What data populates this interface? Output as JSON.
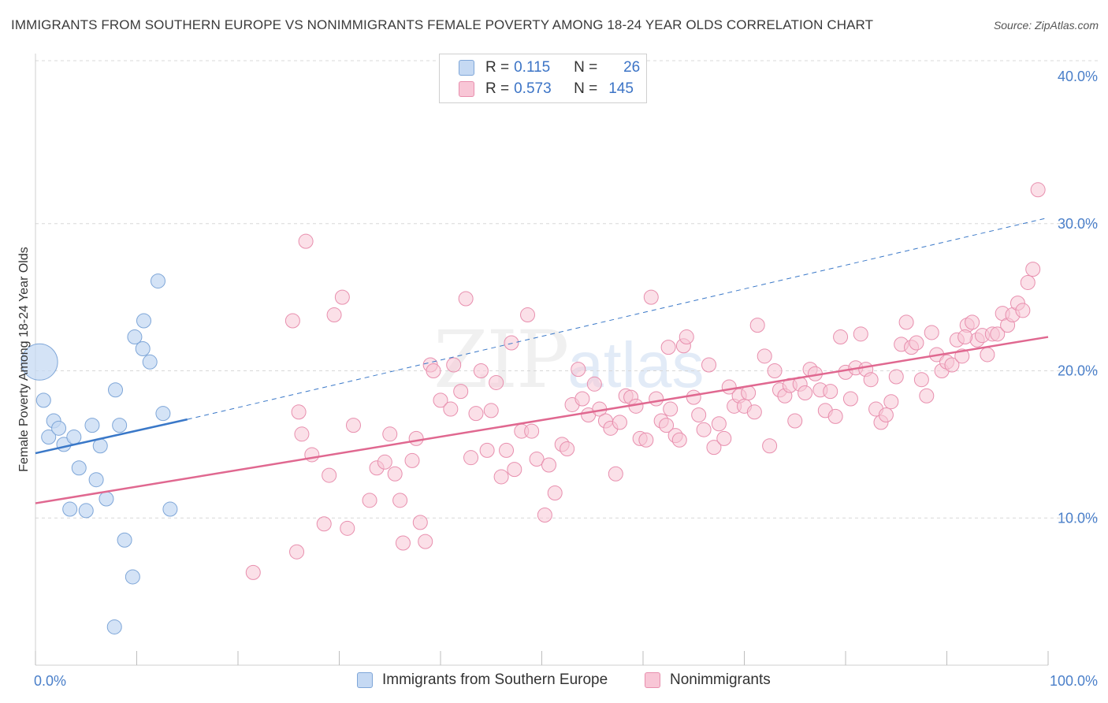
{
  "title": "IMMIGRANTS FROM SOUTHERN EUROPE VS NONIMMIGRANTS FEMALE POVERTY AMONG 18-24 YEAR OLDS CORRELATION CHART",
  "source": "Source: ZipAtlas.com",
  "watermark": {
    "zip": "ZIP",
    "atlas": "atlas"
  },
  "legend": {
    "rows": [
      {
        "r_label": "R =",
        "r_value": "0.115",
        "n_label": "N =",
        "n_value": "26"
      },
      {
        "r_label": "R =",
        "r_value": "0.573",
        "n_label": "N =",
        "n_value": "145"
      }
    ]
  },
  "bottom_legend": {
    "series1": "Immigrants from Southern Europe",
    "series2": "Nonimmigrants"
  },
  "chart_data": {
    "type": "scatter",
    "title": "IMMIGRANTS FROM SOUTHERN EUROPE VS NONIMMIGRANTS FEMALE POVERTY AMONG 18-24 YEAR OLDS CORRELATION CHART",
    "xlabel": "",
    "ylabel": "Female Poverty Among 18-24 Year Olds",
    "xlim": [
      0,
      100
    ],
    "ylim": [
      0,
      40
    ],
    "x_tick_labels": [
      {
        "value": 0,
        "label": "0.0%"
      },
      {
        "value": 100,
        "label": "100.0%"
      }
    ],
    "y_tick_labels": [
      {
        "value": 10,
        "label": "10.0%"
      },
      {
        "value": 20,
        "label": "20.0%"
      },
      {
        "value": 30,
        "label": "30.0%"
      },
      {
        "value": 40,
        "label": "40.0%"
      }
    ],
    "colors": {
      "series1_fill": "#c5d9f3",
      "series1_stroke": "#7ea6d8",
      "series1_line": "#3a78c8",
      "series2_fill": "#f8c6d6",
      "series2_stroke": "#e88fae",
      "series2_line": "#e06890",
      "tick_label": "#4a7fc9",
      "grid": "#d8d8d8"
    },
    "series": [
      {
        "name": "Immigrants from Southern Europe",
        "R": 0.115,
        "N": 26,
        "trend": {
          "x0": 0,
          "y0": 14.4,
          "x1": 15,
          "y1": 16.7,
          "x_dash_end": 100,
          "y_dash_end": 30.4
        },
        "points": [
          {
            "x": 0.4,
            "y": 20.6,
            "big": true
          },
          {
            "x": 0.8,
            "y": 18.0
          },
          {
            "x": 1.3,
            "y": 15.5
          },
          {
            "x": 1.8,
            "y": 16.6
          },
          {
            "x": 2.3,
            "y": 16.1
          },
          {
            "x": 2.8,
            "y": 15.0
          },
          {
            "x": 3.4,
            "y": 10.6
          },
          {
            "x": 3.8,
            "y": 15.5
          },
          {
            "x": 4.3,
            "y": 13.4
          },
          {
            "x": 5.0,
            "y": 10.5
          },
          {
            "x": 5.6,
            "y": 16.3
          },
          {
            "x": 6.0,
            "y": 12.6
          },
          {
            "x": 6.4,
            "y": 14.9
          },
          {
            "x": 7.0,
            "y": 11.3
          },
          {
            "x": 7.8,
            "y": 2.6
          },
          {
            "x": 7.9,
            "y": 18.7
          },
          {
            "x": 8.3,
            "y": 16.3
          },
          {
            "x": 8.8,
            "y": 8.5
          },
          {
            "x": 9.6,
            "y": 6.0
          },
          {
            "x": 9.8,
            "y": 22.3
          },
          {
            "x": 10.6,
            "y": 21.5
          },
          {
            "x": 10.7,
            "y": 23.4
          },
          {
            "x": 11.3,
            "y": 20.6
          },
          {
            "x": 12.1,
            "y": 26.1
          },
          {
            "x": 12.6,
            "y": 17.1
          },
          {
            "x": 13.3,
            "y": 10.6
          }
        ]
      },
      {
        "name": "Nonimmigrants",
        "R": 0.573,
        "N": 145,
        "trend": {
          "x0": 0,
          "y0": 11.0,
          "x1": 100,
          "y1": 22.3
        },
        "points": [
          {
            "x": 21.5,
            "y": 6.3
          },
          {
            "x": 25.4,
            "y": 23.4
          },
          {
            "x": 25.8,
            "y": 7.7
          },
          {
            "x": 26.0,
            "y": 17.2
          },
          {
            "x": 26.3,
            "y": 15.7
          },
          {
            "x": 26.7,
            "y": 28.8
          },
          {
            "x": 27.3,
            "y": 14.3
          },
          {
            "x": 28.5,
            "y": 9.6
          },
          {
            "x": 29.0,
            "y": 12.9
          },
          {
            "x": 29.5,
            "y": 23.8
          },
          {
            "x": 30.3,
            "y": 25.0
          },
          {
            "x": 30.8,
            "y": 9.3
          },
          {
            "x": 31.4,
            "y": 16.3
          },
          {
            "x": 33.0,
            "y": 11.2
          },
          {
            "x": 33.7,
            "y": 13.4
          },
          {
            "x": 34.5,
            "y": 13.8
          },
          {
            "x": 35.0,
            "y": 15.7
          },
          {
            "x": 35.5,
            "y": 13.0
          },
          {
            "x": 36.0,
            "y": 11.2
          },
          {
            "x": 36.3,
            "y": 8.3
          },
          {
            "x": 37.2,
            "y": 13.9
          },
          {
            "x": 37.6,
            "y": 15.4
          },
          {
            "x": 38.0,
            "y": 9.7
          },
          {
            "x": 38.5,
            "y": 8.4
          },
          {
            "x": 39.0,
            "y": 20.4
          },
          {
            "x": 39.3,
            "y": 20.0
          },
          {
            "x": 40.0,
            "y": 18.0
          },
          {
            "x": 41.0,
            "y": 17.4
          },
          {
            "x": 41.3,
            "y": 20.4
          },
          {
            "x": 42.0,
            "y": 18.6
          },
          {
            "x": 42.5,
            "y": 24.9
          },
          {
            "x": 43.0,
            "y": 14.1
          },
          {
            "x": 43.5,
            "y": 17.1
          },
          {
            "x": 44.0,
            "y": 20.0
          },
          {
            "x": 44.6,
            "y": 14.6
          },
          {
            "x": 45.0,
            "y": 17.3
          },
          {
            "x": 45.5,
            "y": 19.2
          },
          {
            "x": 46.0,
            "y": 12.8
          },
          {
            "x": 46.5,
            "y": 14.6
          },
          {
            "x": 47.0,
            "y": 21.9
          },
          {
            "x": 47.3,
            "y": 13.3
          },
          {
            "x": 48.0,
            "y": 15.9
          },
          {
            "x": 48.6,
            "y": 23.8
          },
          {
            "x": 49.0,
            "y": 15.9
          },
          {
            "x": 49.5,
            "y": 14.0
          },
          {
            "x": 50.3,
            "y": 10.2
          },
          {
            "x": 50.7,
            "y": 13.6
          },
          {
            "x": 51.3,
            "y": 11.7
          },
          {
            "x": 52.0,
            "y": 15.0
          },
          {
            "x": 52.5,
            "y": 14.7
          },
          {
            "x": 53.0,
            "y": 17.7
          },
          {
            "x": 53.6,
            "y": 20.1
          },
          {
            "x": 54.0,
            "y": 18.1
          },
          {
            "x": 54.6,
            "y": 17.0
          },
          {
            "x": 55.2,
            "y": 19.1
          },
          {
            "x": 55.7,
            "y": 17.4
          },
          {
            "x": 56.3,
            "y": 16.6
          },
          {
            "x": 56.8,
            "y": 16.1
          },
          {
            "x": 57.3,
            "y": 13.0
          },
          {
            "x": 57.7,
            "y": 16.5
          },
          {
            "x": 58.3,
            "y": 18.3
          },
          {
            "x": 58.8,
            "y": 18.2
          },
          {
            "x": 59.3,
            "y": 17.6
          },
          {
            "x": 59.7,
            "y": 15.4
          },
          {
            "x": 60.3,
            "y": 15.3
          },
          {
            "x": 60.8,
            "y": 25.0
          },
          {
            "x": 61.3,
            "y": 18.1
          },
          {
            "x": 61.8,
            "y": 16.6
          },
          {
            "x": 62.3,
            "y": 16.3
          },
          {
            "x": 62.7,
            "y": 17.4
          },
          {
            "x": 63.2,
            "y": 15.6
          },
          {
            "x": 63.6,
            "y": 15.3
          },
          {
            "x": 64.0,
            "y": 21.7
          },
          {
            "x": 64.3,
            "y": 22.3
          },
          {
            "x": 65.0,
            "y": 18.2
          },
          {
            "x": 65.5,
            "y": 17.0
          },
          {
            "x": 66.0,
            "y": 16.0
          },
          {
            "x": 66.5,
            "y": 20.4
          },
          {
            "x": 67.0,
            "y": 14.8
          },
          {
            "x": 67.5,
            "y": 16.4
          },
          {
            "x": 68.0,
            "y": 15.4
          },
          {
            "x": 68.5,
            "y": 18.9
          },
          {
            "x": 69.0,
            "y": 17.6
          },
          {
            "x": 69.5,
            "y": 18.3
          },
          {
            "x": 70.0,
            "y": 17.6
          },
          {
            "x": 70.4,
            "y": 18.5
          },
          {
            "x": 71.0,
            "y": 17.2
          },
          {
            "x": 71.3,
            "y": 23.1
          },
          {
            "x": 72.0,
            "y": 21.0
          },
          {
            "x": 72.5,
            "y": 14.9
          },
          {
            "x": 73.0,
            "y": 20.0
          },
          {
            "x": 73.5,
            "y": 18.7
          },
          {
            "x": 74.0,
            "y": 18.3
          },
          {
            "x": 74.5,
            "y": 19.0
          },
          {
            "x": 75.0,
            "y": 16.6
          },
          {
            "x": 75.5,
            "y": 19.1
          },
          {
            "x": 76.0,
            "y": 18.5
          },
          {
            "x": 76.5,
            "y": 20.1
          },
          {
            "x": 77.0,
            "y": 19.8
          },
          {
            "x": 77.5,
            "y": 18.7
          },
          {
            "x": 78.0,
            "y": 17.3
          },
          {
            "x": 78.5,
            "y": 18.6
          },
          {
            "x": 79.0,
            "y": 16.9
          },
          {
            "x": 79.5,
            "y": 22.3
          },
          {
            "x": 80.0,
            "y": 19.9
          },
          {
            "x": 80.5,
            "y": 18.1
          },
          {
            "x": 81.0,
            "y": 20.2
          },
          {
            "x": 81.5,
            "y": 22.5
          },
          {
            "x": 82.0,
            "y": 20.1
          },
          {
            "x": 82.5,
            "y": 19.4
          },
          {
            "x": 83.0,
            "y": 17.4
          },
          {
            "x": 83.5,
            "y": 16.5
          },
          {
            "x": 84.0,
            "y": 17.0
          },
          {
            "x": 84.5,
            "y": 17.9
          },
          {
            "x": 85.0,
            "y": 19.6
          },
          {
            "x": 85.5,
            "y": 21.8
          },
          {
            "x": 86.0,
            "y": 23.3
          },
          {
            "x": 86.5,
            "y": 21.6
          },
          {
            "x": 87.0,
            "y": 21.9
          },
          {
            "x": 87.5,
            "y": 19.4
          },
          {
            "x": 88.0,
            "y": 18.3
          },
          {
            "x": 88.5,
            "y": 22.6
          },
          {
            "x": 89.0,
            "y": 21.1
          },
          {
            "x": 89.5,
            "y": 20.0
          },
          {
            "x": 90.0,
            "y": 20.6
          },
          {
            "x": 90.5,
            "y": 20.4
          },
          {
            "x": 91.0,
            "y": 22.1
          },
          {
            "x": 91.5,
            "y": 21.0
          },
          {
            "x": 92.0,
            "y": 23.1
          },
          {
            "x": 92.5,
            "y": 23.3
          },
          {
            "x": 93.0,
            "y": 22.1
          },
          {
            "x": 93.5,
            "y": 22.4
          },
          {
            "x": 94.0,
            "y": 21.1
          },
          {
            "x": 94.5,
            "y": 22.5
          },
          {
            "x": 95.0,
            "y": 22.5
          },
          {
            "x": 95.5,
            "y": 23.9
          },
          {
            "x": 96.0,
            "y": 23.1
          },
          {
            "x": 96.5,
            "y": 23.8
          },
          {
            "x": 97.0,
            "y": 24.6
          },
          {
            "x": 97.5,
            "y": 24.1
          },
          {
            "x": 98.0,
            "y": 26.0
          },
          {
            "x": 98.5,
            "y": 26.9
          },
          {
            "x": 99.0,
            "y": 32.3
          },
          {
            "x": 91.8,
            "y": 22.3
          },
          {
            "x": 62.5,
            "y": 21.6
          }
        ]
      }
    ]
  }
}
